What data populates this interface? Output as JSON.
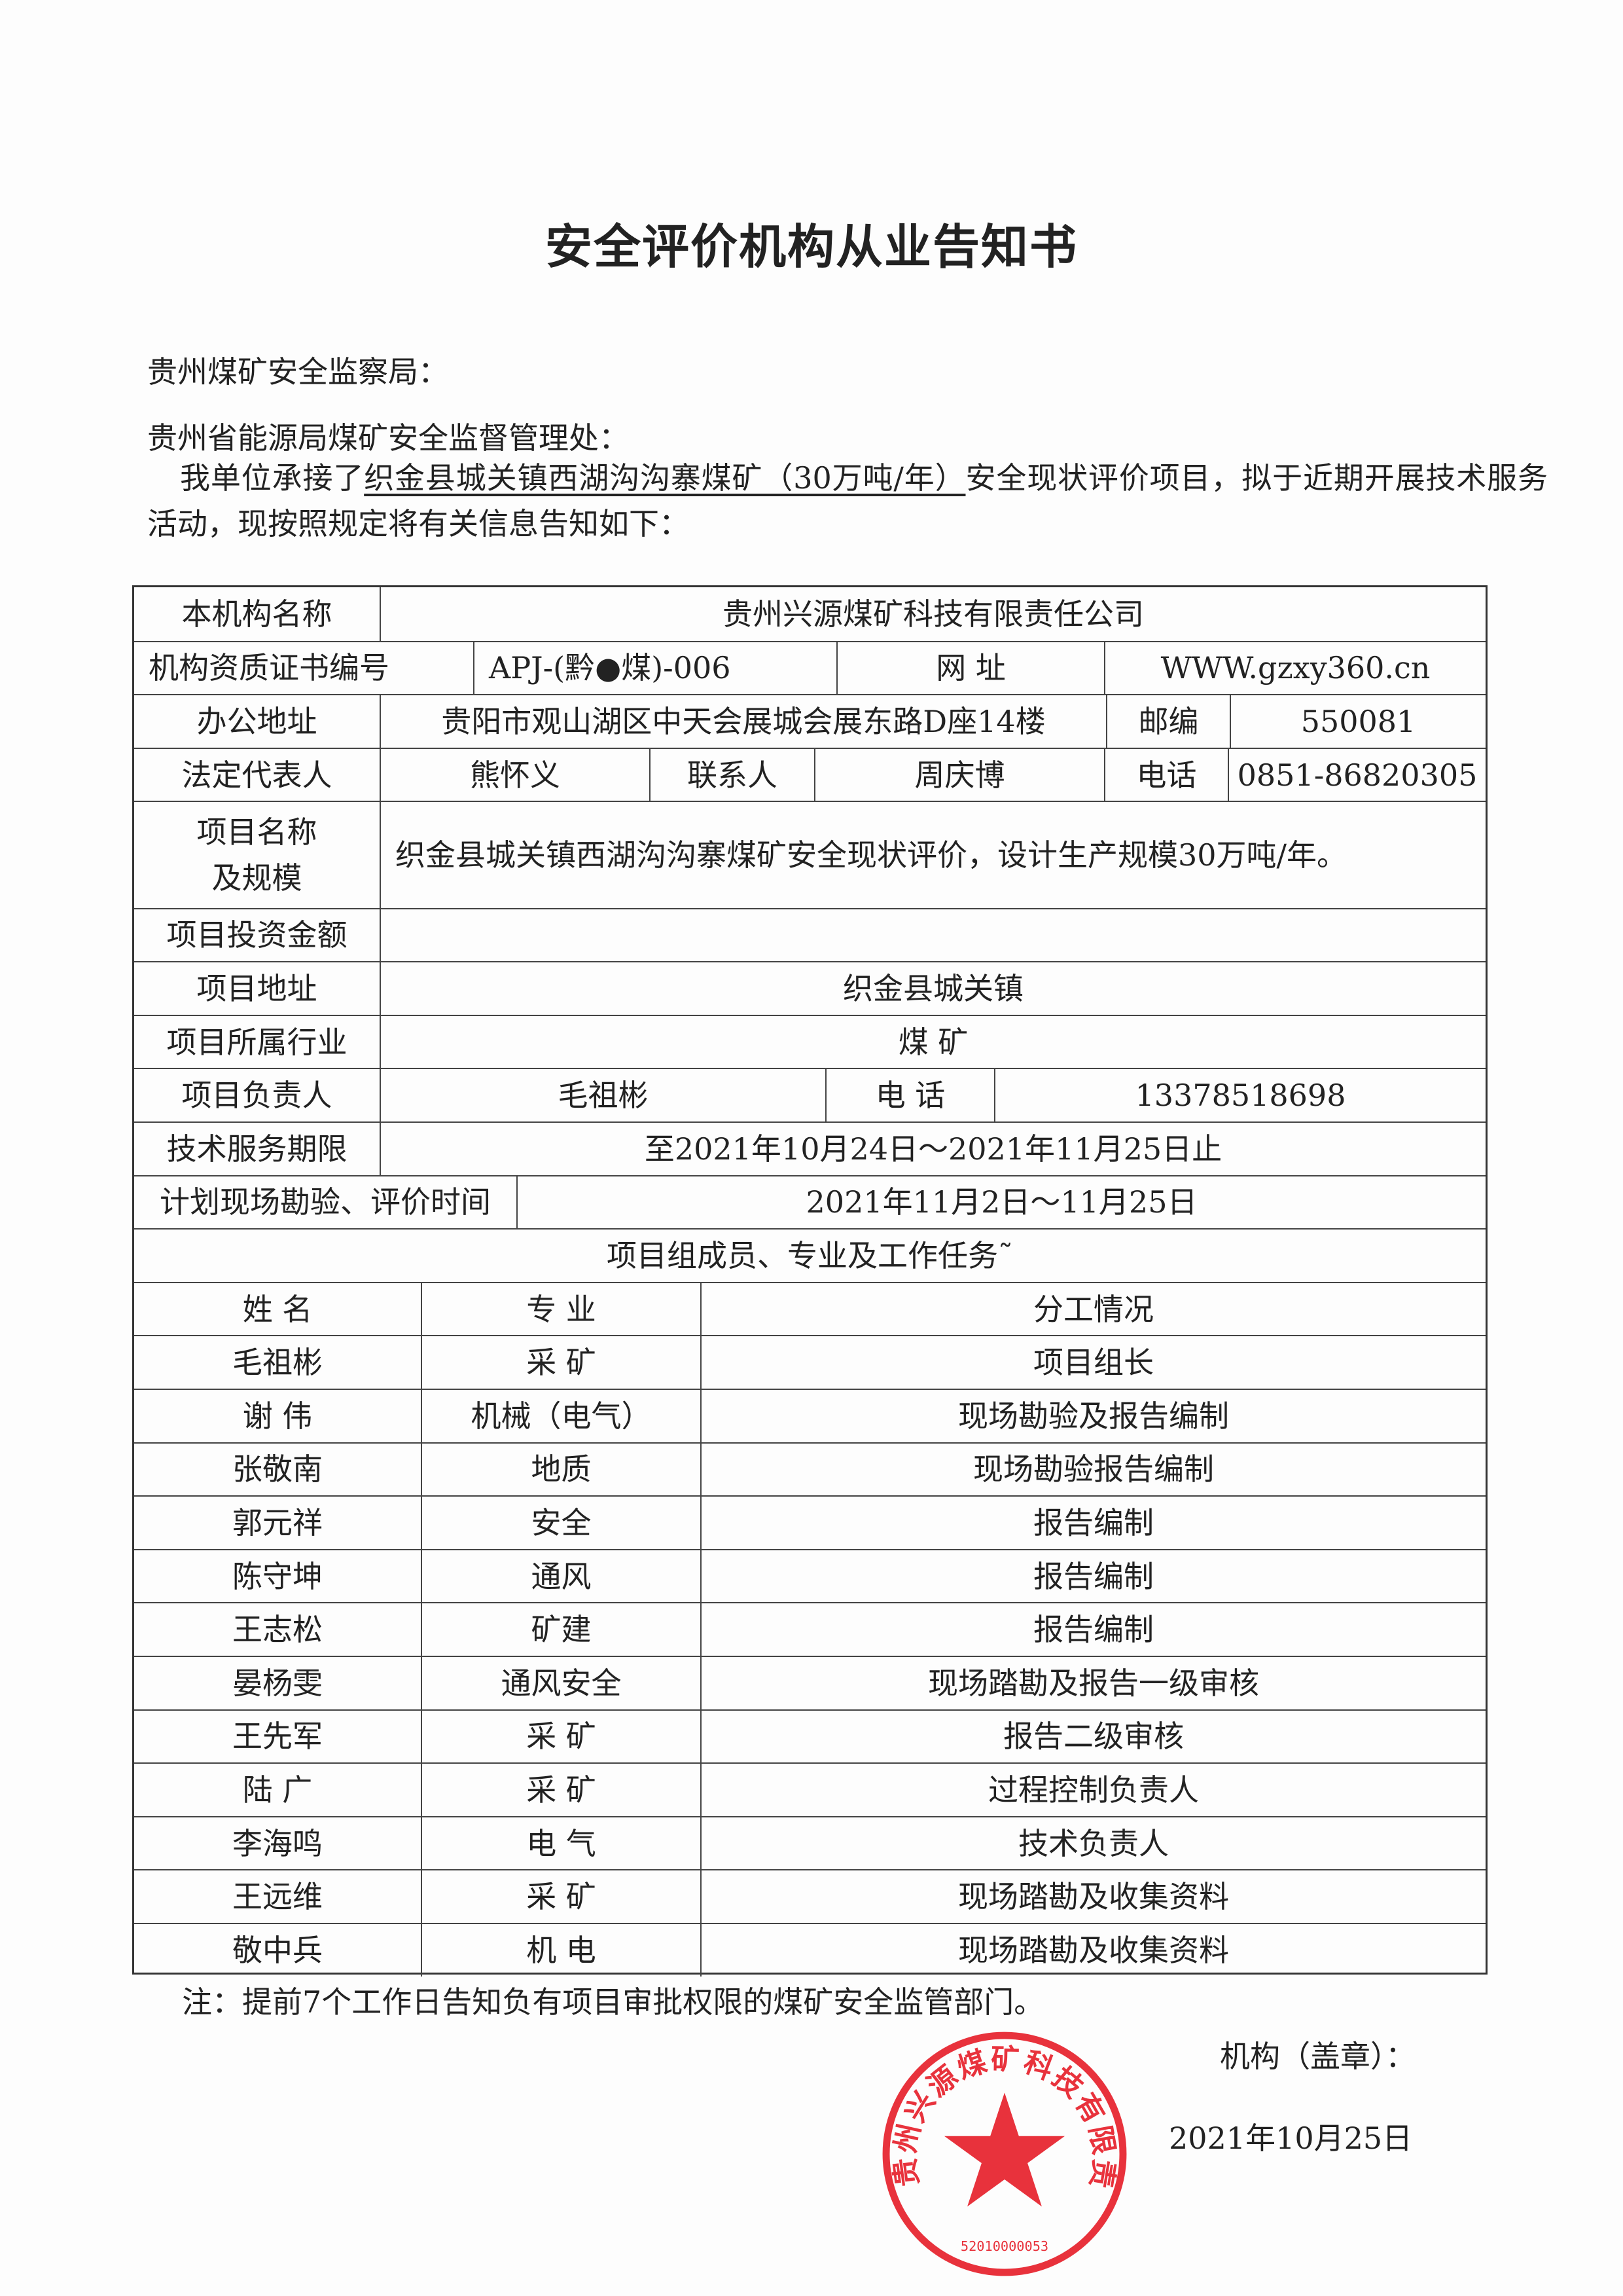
{
  "title": "安全评价机构从业告知书",
  "recipients": [
    "贵州煤矿安全监察局：",
    "贵州省能源局煤矿安全监督管理处："
  ],
  "intro": {
    "before": "我单位承接了",
    "project_underlined": "织金县城关镇西湖沟沟寨煤矿（30万吨/年）",
    "after": "安全现状评价项目，拟于近期开展技术服务活动，现按照规定将有关信息告知如下："
  },
  "table": {
    "org_name_label": "本机构名称",
    "org_name": "贵州兴源煤矿科技有限责任公司",
    "cert_label": "机构资质证书编号",
    "cert_no": "APJ-(黔●煤)-006",
    "website_label": "网  址",
    "website": "WWW.gzxy360.cn",
    "address_label": "办公地址",
    "address": "贵阳市观山湖区中天会展城会展东路D座14楼",
    "postcode_label": "邮编",
    "postcode": "550081",
    "legal_rep_label": "法定代表人",
    "legal_rep": "熊怀义",
    "contact_label": "联系人",
    "contact": "周庆博",
    "phone_label": "电话",
    "phone": "0851-86820305",
    "project_name_label_1": "项目名称",
    "project_name_label_2": "及规模",
    "project_name": "织金县城关镇西湖沟沟寨煤矿安全现状评价，设计生产规模30万吨/年。",
    "investment_label": "项目投资金额",
    "investment": "",
    "project_address_label": "项目地址",
    "project_address": "织金县城关镇",
    "industry_label": "项目所属行业",
    "industry": "煤  矿",
    "leader_label": "项目负责人",
    "leader": "毛祖彬",
    "leader_phone_label": "电  话",
    "leader_phone": "13378518698",
    "service_period_label": "技术服务期限",
    "service_period": "至2021年10月24日～2021年11月25日止",
    "survey_time_label": "计划现场勘验、评价时间",
    "survey_time": "2021年11月2日～11月25日",
    "members_title": "项目组成员、专业及工作任务˜",
    "member_headers": [
      "姓  名",
      "专  业",
      "分工情况"
    ],
    "members": [
      [
        "毛祖彬",
        "采  矿",
        "项目组长"
      ],
      [
        "谢  伟",
        "机械（电气）",
        "现场勘验及报告编制"
      ],
      [
        "张敬南",
        "地质",
        "现场勘验报告编制"
      ],
      [
        "郭元祥",
        "安全",
        "报告编制"
      ],
      [
        "陈守坤",
        "通风",
        "报告编制"
      ],
      [
        "王志松",
        "矿建",
        "报告编制"
      ],
      [
        "晏杨雯",
        "通风安全",
        "现场踏勘及报告一级审核"
      ],
      [
        "王先军",
        "采  矿",
        "报告二级审核"
      ],
      [
        "陆  广",
        "采  矿",
        "过程控制负责人"
      ],
      [
        "李海鸣",
        "电  气",
        "技术负责人"
      ],
      [
        "王远维",
        "采  矿",
        "现场踏勘及收集资料"
      ],
      [
        "敬中兵",
        "机  电",
        "现场踏勘及收集资料"
      ]
    ]
  },
  "note": "注：提前7个工作日告知负有项目审批权限的煤矿安全监管部门。",
  "seal_label": "机构（盖章）：",
  "date": "2021年10月25日",
  "stamp": {
    "text": "贵州兴源煤矿科技有限责任公司",
    "number": "52010000053",
    "color": "#e8323c"
  }
}
